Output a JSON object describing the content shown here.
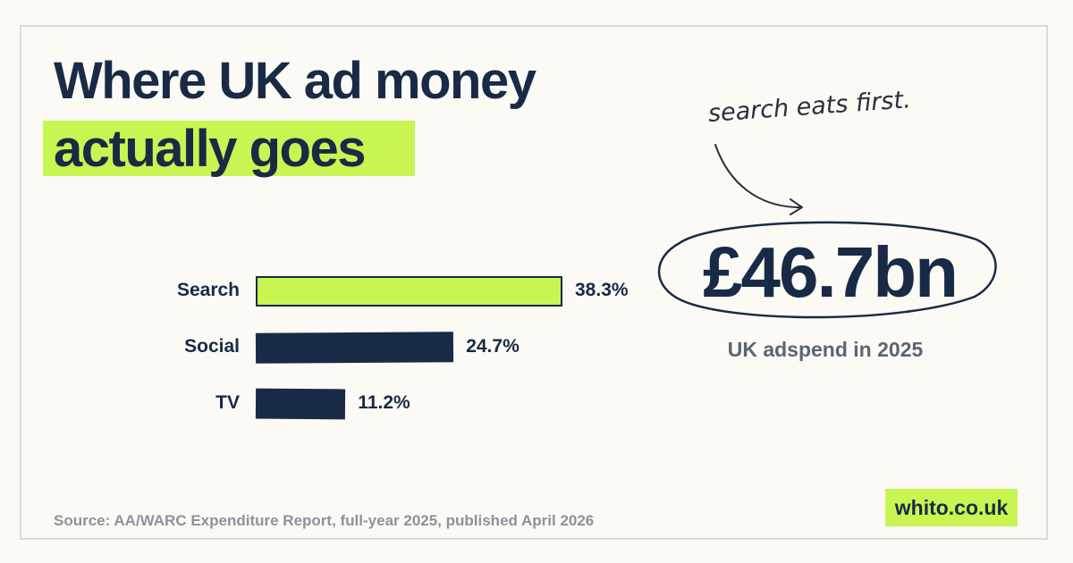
{
  "title": {
    "line1": "Where UK ad money",
    "line2": "actually goes"
  },
  "annotation": "search eats first.",
  "headline": {
    "value": "£46.7bn",
    "caption": "UK adspend in 2025"
  },
  "source": "Source: AA/WARC Expenditure Report, full-year 2025, published April 2026",
  "brand": "whito.co.uk",
  "colors": {
    "accent": "#c8f551",
    "navy": "#182a45",
    "background": "#fbfaf5"
  },
  "chart_data": {
    "type": "bar",
    "orientation": "horizontal",
    "categories": [
      "Search",
      "Social",
      "TV"
    ],
    "values": [
      38.3,
      24.7,
      11.2
    ],
    "value_labels": [
      "38.3%",
      "24.7%",
      "11.2%"
    ],
    "highlight": "Search",
    "unit": "%",
    "grid": false
  }
}
